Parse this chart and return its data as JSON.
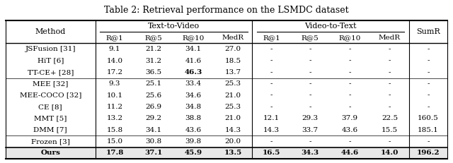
{
  "title": "Table 2: Retrieval performance on the LSMDC dataset",
  "col_groups": [
    {
      "label": "Text-to-Video",
      "cols": [
        "R@1",
        "R@5",
        "R@10",
        "MedR"
      ]
    },
    {
      "label": "Video-to-Text",
      "cols": [
        "R@1",
        "R@5",
        "R@10",
        "MedR"
      ]
    }
  ],
  "extra_col": "SumR",
  "method_col": "Method",
  "rows": [
    {
      "method": "JSFusion [31]",
      "t2v": [
        "9.1",
        "21.2",
        "34.1",
        "27.0"
      ],
      "v2t": [
        "-",
        "-",
        "-",
        "-"
      ],
      "sumr": "-",
      "group": 0,
      "bold": []
    },
    {
      "method": "HiT [6]",
      "t2v": [
        "14.0",
        "31.2",
        "41.6",
        "18.5"
      ],
      "v2t": [
        "-",
        "-",
        "-",
        "-"
      ],
      "sumr": "-",
      "group": 0,
      "bold": []
    },
    {
      "method": "TT-CE+ [28]",
      "t2v": [
        "17.2",
        "36.5",
        "46.3",
        "13.7"
      ],
      "v2t": [
        "-",
        "-",
        "-",
        "-"
      ],
      "sumr": "-",
      "group": 0,
      "bold": [
        "46.3"
      ]
    },
    {
      "method": "MEE [32]",
      "t2v": [
        "9.3",
        "25.1",
        "33.4",
        "25.3"
      ],
      "v2t": [
        "-",
        "-",
        "-",
        "-"
      ],
      "sumr": "-",
      "group": 1,
      "bold": []
    },
    {
      "method": "MEE-COCO [32]",
      "t2v": [
        "10.1",
        "25.6",
        "34.6",
        "21.0"
      ],
      "v2t": [
        "-",
        "-",
        "-",
        "-"
      ],
      "sumr": "-",
      "group": 1,
      "bold": []
    },
    {
      "method": "CE [8]",
      "t2v": [
        "11.2",
        "26.9",
        "34.8",
        "25.3"
      ],
      "v2t": [
        "-",
        "-",
        "-",
        "-"
      ],
      "sumr": "-",
      "group": 1,
      "bold": []
    },
    {
      "method": "MMT [5]",
      "t2v": [
        "13.2",
        "29.2",
        "38.8",
        "21.0"
      ],
      "v2t": [
        "12.1",
        "29.3",
        "37.9",
        "22.5"
      ],
      "sumr": "160.5",
      "group": 1,
      "bold": []
    },
    {
      "method": "DMM [7]",
      "t2v": [
        "15.8",
        "34.1",
        "43.6",
        "14.3"
      ],
      "v2t": [
        "14.3",
        "33.7",
        "43.6",
        "15.5"
      ],
      "sumr": "185.1",
      "group": 1,
      "bold": []
    },
    {
      "method": "Frozen [3]",
      "t2v": [
        "15.0",
        "30.8",
        "39.8",
        "20.0"
      ],
      "v2t": [
        "-",
        "-",
        "-",
        "-"
      ],
      "sumr": "-",
      "group": 2,
      "bold": []
    },
    {
      "method": "Ours",
      "t2v": [
        "17.8",
        "37.1",
        "45.9",
        "13.5"
      ],
      "v2t": [
        "16.5",
        "34.3",
        "44.6",
        "14.0"
      ],
      "sumr": "196.2",
      "group": 3,
      "bold": [
        "17.8",
        "37.1",
        "45.9",
        "13.5",
        "16.5",
        "34.3",
        "44.6",
        "14.0",
        "196.2"
      ]
    }
  ],
  "bg_color": "#ffffff",
  "header_bg": "#ffffff",
  "last_row_bg": "#e8e8e8",
  "title_fontsize": 9,
  "cell_fontsize": 7.5,
  "header_fontsize": 8
}
